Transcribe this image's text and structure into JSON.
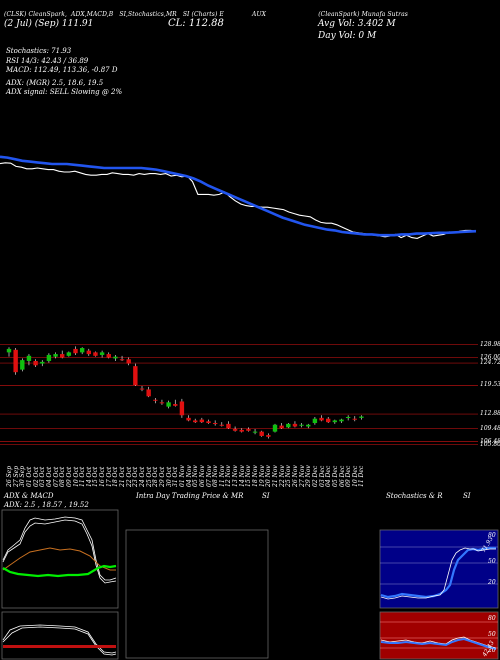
{
  "header": {
    "top_tabs": [
      "(CLSK) CleanSpark,",
      "ADX,MACD,B",
      "SI,Stochastics,MR",
      "SI (Charts) E",
      "AUX",
      "(CleanSpark) Munafa Sutras"
    ],
    "date_price": "(2 Jul) (Sep) 111.91",
    "close": "CL: 112.88",
    "avg_vol": "Avg Vol: 3.402  M",
    "day_vol": "Day Vol: 0  M"
  },
  "indicators": {
    "stochastics": "Stochastics: 71.93",
    "rsi": "RSI 14/3: 42.43 / 36.89",
    "macd": "MACD: 112.49,  113.36,  -0.87 D",
    "adx": "ADX:                (MGR) 2.5,  18.6,  19.5",
    "adx_signal": "ADX  signal: SELL  Slowing @ 2%"
  },
  "colors": {
    "up": "#10c010",
    "down": "#e01010",
    "ma": "#2255ee",
    "price": "#ffffff",
    "grid": "#b01010"
  },
  "price_labels": [
    "128.98",
    "126.00",
    "124.72",
    "119.53",
    "112.88",
    "109.48",
    "106.48",
    "105.80"
  ],
  "date_labels": [
    "26 Sep",
    "27 Sep",
    "30 Sep",
    "01 Oct",
    "02 Oct",
    "03 Oct",
    "04 Oct",
    "07 Oct",
    "08 Oct",
    "09 Oct",
    "10 Oct",
    "11 Oct",
    "14 Oct",
    "15 Oct",
    "16 Oct",
    "17 Oct",
    "18 Oct",
    "21 Oct",
    "22 Oct",
    "23 Oct",
    "24 Oct",
    "25 Oct",
    "28 Oct",
    "29 Oct",
    "30 Oct",
    "31 Oct",
    "01 Nov",
    "04 Nov",
    "05 Nov",
    "06 Nov",
    "07 Nov",
    "08 Nov",
    "11 Nov",
    "12 Nov",
    "13 Nov",
    "14 Nov",
    "15 Nov",
    "18 Nov",
    "19 Nov",
    "20 Nov",
    "21 Nov",
    "22 Nov",
    "25 Nov",
    "26 Nov",
    "27 Nov",
    "29 Nov",
    "02 Dec",
    "03 Dec",
    "04 Dec",
    "05 Dec",
    "06 Dec",
    "09 Dec",
    "10 Dec",
    "11 Dec"
  ],
  "panels": {
    "adx_title": "ADX  & MACD",
    "adx_values": "ADX: 2.5 , 18.57 , 19.52",
    "intraday_title": "Intra  Day Trading Price  & MR",
    "intraday_si": "SI",
    "stoch_title": "Stochastics & R",
    "stoch_si": "SI",
    "stoch_levels": [
      "80",
      "50",
      "20"
    ],
    "stoch_value": "71.93",
    "rsi_levels": [
      "80",
      "50",
      "20"
    ],
    "rsi_value": "42.43"
  },
  "chart_data": {
    "type": "candlestick",
    "ylim": [
      105,
      131
    ],
    "candles": [
      {
        "o": 127.2,
        "h": 128.4,
        "l": 126.2,
        "c": 128.0
      },
      {
        "o": 127.8,
        "h": 128.2,
        "l": 122.0,
        "c": 122.6
      },
      {
        "o": 123.2,
        "h": 125.8,
        "l": 122.8,
        "c": 125.4
      },
      {
        "o": 125.2,
        "h": 126.8,
        "l": 124.2,
        "c": 126.4
      },
      {
        "o": 125.2,
        "h": 125.6,
        "l": 123.8,
        "c": 124.2
      },
      {
        "o": 124.6,
        "h": 125.4,
        "l": 124.0,
        "c": 125.0
      },
      {
        "o": 125.2,
        "h": 127.0,
        "l": 124.8,
        "c": 126.6
      },
      {
        "o": 126.2,
        "h": 127.2,
        "l": 125.8,
        "c": 126.8
      },
      {
        "o": 126.8,
        "h": 127.6,
        "l": 125.8,
        "c": 126.0
      },
      {
        "o": 126.4,
        "h": 127.4,
        "l": 126.2,
        "c": 127.2
      },
      {
        "o": 128.0,
        "h": 128.6,
        "l": 126.6,
        "c": 127.0
      },
      {
        "o": 127.2,
        "h": 128.4,
        "l": 126.8,
        "c": 128.2
      },
      {
        "o": 127.6,
        "h": 128.0,
        "l": 126.4,
        "c": 126.8
      },
      {
        "o": 127.2,
        "h": 127.4,
        "l": 126.2,
        "c": 126.4
      },
      {
        "o": 126.6,
        "h": 127.6,
        "l": 126.0,
        "c": 127.2
      },
      {
        "o": 126.8,
        "h": 127.2,
        "l": 125.8,
        "c": 126.0
      },
      {
        "o": 125.8,
        "h": 126.6,
        "l": 125.2,
        "c": 126.2
      },
      {
        "o": 125.6,
        "h": 126.4,
        "l": 125.2,
        "c": 125.4
      },
      {
        "o": 125.6,
        "h": 126.0,
        "l": 124.2,
        "c": 124.6
      },
      {
        "o": 124.0,
        "h": 124.6,
        "l": 119.4,
        "c": 119.6
      },
      {
        "o": 118.8,
        "h": 119.4,
        "l": 118.2,
        "c": 118.6
      },
      {
        "o": 118.6,
        "h": 119.2,
        "l": 116.8,
        "c": 117.0
      },
      {
        "o": 116.2,
        "h": 116.6,
        "l": 115.4,
        "c": 116.0
      },
      {
        "o": 115.6,
        "h": 116.2,
        "l": 115.0,
        "c": 115.4
      },
      {
        "o": 114.6,
        "h": 116.0,
        "l": 114.2,
        "c": 115.6
      },
      {
        "o": 115.2,
        "h": 116.2,
        "l": 114.6,
        "c": 114.8
      },
      {
        "o": 115.8,
        "h": 116.4,
        "l": 112.0,
        "c": 112.6
      },
      {
        "o": 112.0,
        "h": 112.6,
        "l": 111.2,
        "c": 111.4
      },
      {
        "o": 111.4,
        "h": 111.8,
        "l": 110.8,
        "c": 111.0
      },
      {
        "o": 111.6,
        "h": 112.0,
        "l": 110.8,
        "c": 111.0
      },
      {
        "o": 111.2,
        "h": 111.6,
        "l": 110.6,
        "c": 110.8
      },
      {
        "o": 110.8,
        "h": 111.4,
        "l": 110.2,
        "c": 110.6
      },
      {
        "o": 110.4,
        "h": 111.0,
        "l": 110.0,
        "c": 110.2
      },
      {
        "o": 110.6,
        "h": 111.2,
        "l": 109.4,
        "c": 109.6
      },
      {
        "o": 109.4,
        "h": 110.0,
        "l": 108.8,
        "c": 109.0
      },
      {
        "o": 109.2,
        "h": 109.6,
        "l": 108.6,
        "c": 108.8
      },
      {
        "o": 109.4,
        "h": 109.8,
        "l": 108.8,
        "c": 109.0
      },
      {
        "o": 108.6,
        "h": 109.4,
        "l": 108.2,
        "c": 108.8
      },
      {
        "o": 108.8,
        "h": 109.0,
        "l": 107.6,
        "c": 107.8
      },
      {
        "o": 108.0,
        "h": 108.4,
        "l": 107.2,
        "c": 107.6
      },
      {
        "o": 108.8,
        "h": 110.6,
        "l": 108.6,
        "c": 110.4
      },
      {
        "o": 110.2,
        "h": 110.8,
        "l": 109.4,
        "c": 109.6
      },
      {
        "o": 109.8,
        "h": 110.8,
        "l": 109.6,
        "c": 110.6
      },
      {
        "o": 110.6,
        "h": 111.2,
        "l": 109.8,
        "c": 110.0
      },
      {
        "o": 110.2,
        "h": 110.8,
        "l": 109.8,
        "c": 110.4
      },
      {
        "o": 110.0,
        "h": 110.6,
        "l": 109.6,
        "c": 110.4
      },
      {
        "o": 110.8,
        "h": 112.2,
        "l": 110.4,
        "c": 111.8
      },
      {
        "o": 112.0,
        "h": 112.6,
        "l": 111.2,
        "c": 111.4
      },
      {
        "o": 111.8,
        "h": 112.2,
        "l": 110.8,
        "c": 111.0
      },
      {
        "o": 111.0,
        "h": 111.6,
        "l": 110.6,
        "c": 111.4
      },
      {
        "o": 111.2,
        "h": 111.8,
        "l": 110.8,
        "c": 111.6
      },
      {
        "o": 112.0,
        "h": 112.6,
        "l": 111.4,
        "c": 112.2
      },
      {
        "o": 111.8,
        "h": 112.4,
        "l": 111.2,
        "c": 111.6
      },
      {
        "o": 112.0,
        "h": 112.6,
        "l": 111.6,
        "c": 112.3
      }
    ],
    "levels": [
      128.98,
      126.0,
      124.72,
      119.53,
      112.88,
      109.48,
      106.48,
      105.8
    ],
    "price_line": [
      0.59,
      0.57,
      0.58,
      0.66,
      0.68,
      0.72,
      0.72,
      0.7,
      0.72,
      0.74,
      0.74,
      0.78,
      0.8,
      0.8,
      0.78,
      0.82,
      0.86,
      0.88,
      0.88,
      0.86,
      0.86,
      0.82,
      0.84,
      0.86,
      0.86,
      0.88,
      0.84,
      0.86,
      0.84,
      0.84,
      0.86,
      0.84,
      0.9,
      0.88,
      0.92,
      0.9,
      1.04,
      1.36,
      1.36,
      1.36,
      1.38,
      1.36,
      1.3,
      1.42,
      1.52,
      1.6,
      1.64,
      1.66,
      1.66,
      1.68,
      1.68,
      1.7,
      1.72,
      1.74,
      1.8,
      1.84,
      1.88,
      1.9,
      1.92,
      2.0,
      2.06,
      2.08,
      2.08,
      2.12,
      2.18,
      2.24,
      2.3,
      2.32,
      2.34,
      2.36,
      2.38,
      2.4,
      2.42,
      2.4,
      2.36,
      2.44,
      2.38,
      2.44,
      2.46,
      2.4,
      2.34,
      2.4,
      2.38,
      2.36,
      2.3,
      2.32,
      2.28,
      2.26,
      2.26,
      2.28
    ],
    "ma_line": [
      0.42,
      0.44,
      0.48,
      0.52,
      0.54,
      0.56,
      0.58,
      0.6,
      0.6,
      0.6,
      0.62,
      0.64,
      0.66,
      0.68,
      0.7,
      0.7,
      0.7,
      0.7,
      0.7,
      0.7,
      0.72,
      0.74,
      0.78,
      0.82,
      0.86,
      0.9,
      0.96,
      1.04,
      1.14,
      1.22,
      1.3,
      1.38,
      1.46,
      1.54,
      1.62,
      1.7,
      1.78,
      1.86,
      1.94,
      2.0,
      2.06,
      2.12,
      2.16,
      2.2,
      2.24,
      2.26,
      2.3,
      2.32,
      2.34,
      2.36,
      2.36,
      2.38,
      2.38,
      2.38,
      2.36,
      2.36,
      2.34,
      2.34,
      2.33,
      2.32,
      2.32,
      2.31,
      2.3,
      2.29,
      2.28
    ]
  }
}
